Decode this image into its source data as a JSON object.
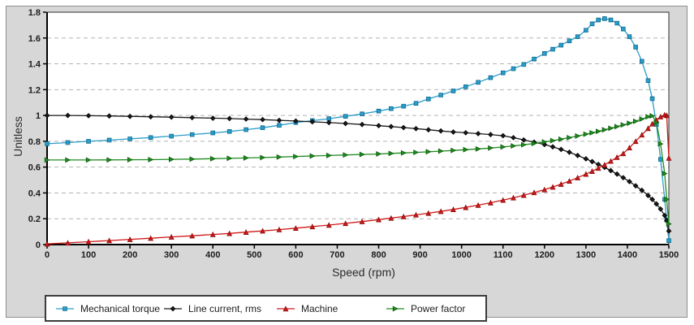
{
  "panel": {
    "background": "#d7d7d7",
    "border_color": "#8f8f8f"
  },
  "chart_data": {
    "type": "line",
    "title": "",
    "xlabel": "Speed (rpm)",
    "ylabel": "Unitless",
    "xlim": [
      0,
      1500
    ],
    "ylim": [
      0,
      1.8
    ],
    "grid": "horizontal-dashed",
    "grid_color": "#b3b3b3",
    "legend_position": "bottom-left",
    "x_tick_values": [
      0,
      100,
      200,
      300,
      400,
      500,
      600,
      700,
      800,
      900,
      1000,
      1100,
      1200,
      1300,
      1400,
      1500
    ],
    "x_tick_labels": [
      "0",
      "100",
      "200",
      "300",
      "400",
      "500",
      "600",
      "700",
      "800",
      "900",
      "1000",
      "1100",
      "1200",
      "1300",
      "1400",
      "1500"
    ],
    "y_tick_values": [
      0,
      0.2,
      0.4,
      0.6,
      0.8,
      1,
      1.2,
      1.4,
      1.6,
      1.8
    ],
    "y_tick_labels": [
      "0",
      "0.2",
      "0.4",
      "0.6",
      "0.8",
      "1",
      "1.2",
      "1.4",
      "1.6",
      "1.8"
    ],
    "x": [
      0,
      50,
      100,
      150,
      200,
      250,
      300,
      350,
      400,
      440,
      480,
      520,
      560,
      600,
      640,
      680,
      720,
      760,
      800,
      830,
      860,
      890,
      920,
      950,
      980,
      1010,
      1040,
      1070,
      1100,
      1125,
      1150,
      1175,
      1200,
      1220,
      1240,
      1260,
      1280,
      1300,
      1315,
      1330,
      1345,
      1360,
      1375,
      1390,
      1405,
      1420,
      1435,
      1450,
      1460,
      1470,
      1480,
      1490,
      1495,
      1500
    ],
    "series": [
      {
        "name": "Mechanical torque",
        "color": "#2b9dc9",
        "edge": "#0f6a8f",
        "marker": "square",
        "values": [
          0.781,
          0.79,
          0.8,
          0.809,
          0.819,
          0.829,
          0.84,
          0.852,
          0.865,
          0.876,
          0.89,
          0.905,
          0.924,
          0.945,
          0.96,
          0.975,
          0.993,
          1.012,
          1.034,
          1.053,
          1.072,
          1.094,
          1.128,
          1.158,
          1.19,
          1.222,
          1.257,
          1.293,
          1.33,
          1.362,
          1.395,
          1.437,
          1.48,
          1.513,
          1.545,
          1.578,
          1.61,
          1.66,
          1.71,
          1.74,
          1.75,
          1.74,
          1.715,
          1.67,
          1.61,
          1.53,
          1.42,
          1.27,
          1.13,
          0.93,
          0.66,
          0.35,
          0.19,
          0.03
        ]
      },
      {
        "name": "Line current, rms",
        "color": "#1a1a1a",
        "edge": "#000000",
        "marker": "diamond",
        "values": [
          1.0,
          1.0,
          0.998,
          0.996,
          0.993,
          0.99,
          0.987,
          0.983,
          0.979,
          0.976,
          0.972,
          0.968,
          0.962,
          0.957,
          0.951,
          0.945,
          0.938,
          0.93,
          0.921,
          0.914,
          0.906,
          0.898,
          0.889,
          0.88,
          0.872,
          0.866,
          0.859,
          0.852,
          0.843,
          0.828,
          0.81,
          0.793,
          0.775,
          0.757,
          0.737,
          0.715,
          0.69,
          0.664,
          0.643,
          0.621,
          0.598,
          0.573,
          0.546,
          0.518,
          0.488,
          0.455,
          0.42,
          0.38,
          0.35,
          0.315,
          0.275,
          0.225,
          0.185,
          0.105
        ]
      },
      {
        "name": "Machine",
        "color": "#cf1717",
        "edge": "#8a0e0e",
        "marker": "triangle-up",
        "values": [
          0.005,
          0.013,
          0.022,
          0.031,
          0.04,
          0.049,
          0.059,
          0.068,
          0.078,
          0.086,
          0.096,
          0.106,
          0.116,
          0.127,
          0.139,
          0.151,
          0.164,
          0.178,
          0.193,
          0.205,
          0.217,
          0.23,
          0.243,
          0.257,
          0.272,
          0.288,
          0.305,
          0.324,
          0.344,
          0.362,
          0.382,
          0.403,
          0.425,
          0.446,
          0.468,
          0.492,
          0.518,
          0.546,
          0.568,
          0.592,
          0.618,
          0.646,
          0.676,
          0.705,
          0.75,
          0.8,
          0.85,
          0.9,
          0.935,
          0.965,
          0.99,
          1.005,
          1.0,
          0.67
        ]
      },
      {
        "name": "Power factor",
        "color": "#1f8c1f",
        "edge": "#0c5a0c",
        "marker": "triangle-right",
        "values": [
          0.655,
          0.655,
          0.655,
          0.656,
          0.657,
          0.658,
          0.66,
          0.662,
          0.665,
          0.668,
          0.671,
          0.674,
          0.678,
          0.682,
          0.686,
          0.69,
          0.694,
          0.698,
          0.702,
          0.706,
          0.71,
          0.714,
          0.719,
          0.724,
          0.729,
          0.735,
          0.741,
          0.748,
          0.756,
          0.764,
          0.773,
          0.783,
          0.795,
          0.805,
          0.816,
          0.828,
          0.841,
          0.855,
          0.866,
          0.877,
          0.889,
          0.901,
          0.914,
          0.927,
          0.94,
          0.955,
          0.972,
          0.99,
          0.997,
          0.945,
          0.78,
          0.55,
          0.35,
          0.16
        ]
      }
    ]
  }
}
